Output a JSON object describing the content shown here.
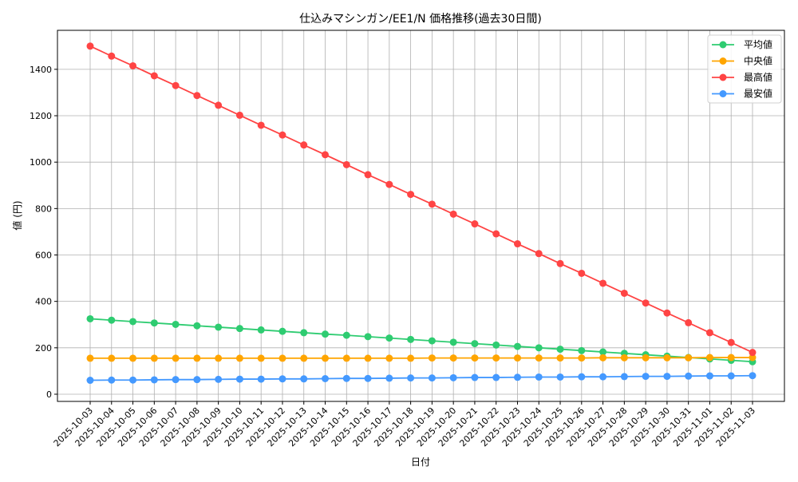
{
  "chart_data": {
    "type": "line",
    "title": "仕込みマシンガン/EE1/N 価格推移(過去30日間)",
    "xlabel": "日付",
    "ylabel": "値 (円)",
    "ylim": [
      -31,
      1568
    ],
    "yticks": [
      0,
      200,
      400,
      600,
      800,
      1000,
      1200,
      1400
    ],
    "grid": true,
    "legend_position": "top-right",
    "x": [
      "2025-10-03",
      "2025-10-04",
      "2025-10-05",
      "2025-10-06",
      "2025-10-07",
      "2025-10-08",
      "2025-10-09",
      "2025-10-10",
      "2025-10-11",
      "2025-10-12",
      "2025-10-13",
      "2025-10-14",
      "2025-10-15",
      "2025-10-16",
      "2025-10-17",
      "2025-10-18",
      "2025-10-19",
      "2025-10-20",
      "2025-10-21",
      "2025-10-22",
      "2025-10-23",
      "2025-10-24",
      "2025-10-25",
      "2025-10-26",
      "2025-10-27",
      "2025-10-28",
      "2025-10-29",
      "2025-10-30",
      "2025-10-31",
      "2025-11-01",
      "2025-11-02",
      "2025-11-03"
    ],
    "series": [
      {
        "name": "平均値",
        "color": "#2ecc71",
        "values": [
          325,
          319,
          313,
          307,
          301,
          295,
          289,
          283,
          277,
          271,
          265,
          259,
          254,
          248,
          242,
          236,
          230,
          224,
          218,
          212,
          206,
          200,
          194,
          188,
          182,
          176,
          170,
          164,
          158,
          152,
          146,
          140
        ]
      },
      {
        "name": "中央値",
        "color": "#ffa500",
        "values": [
          155,
          155,
          155,
          155,
          155,
          155,
          155,
          155,
          155,
          155,
          155,
          155,
          155,
          155,
          155,
          155,
          156,
          156,
          156,
          156,
          156,
          156,
          156,
          156,
          157,
          157,
          157,
          157,
          157,
          158,
          158,
          158
        ]
      },
      {
        "name": "最高値",
        "color": "#ff4444",
        "values": [
          1500,
          1457,
          1415,
          1372,
          1330,
          1287,
          1245,
          1202,
          1159,
          1117,
          1074,
          1032,
          989,
          946,
          904,
          861,
          819,
          776,
          734,
          691,
          648,
          606,
          563,
          521,
          478,
          435,
          393,
          350,
          308,
          265,
          223,
          180
        ]
      },
      {
        "name": "最安値",
        "color": "#4499ff",
        "values": [
          60,
          61,
          61,
          62,
          63,
          63,
          64,
          65,
          65,
          66,
          66,
          67,
          68,
          68,
          69,
          70,
          70,
          71,
          72,
          72,
          73,
          74,
          74,
          75,
          75,
          76,
          77,
          77,
          78,
          79,
          79,
          80
        ]
      }
    ]
  }
}
